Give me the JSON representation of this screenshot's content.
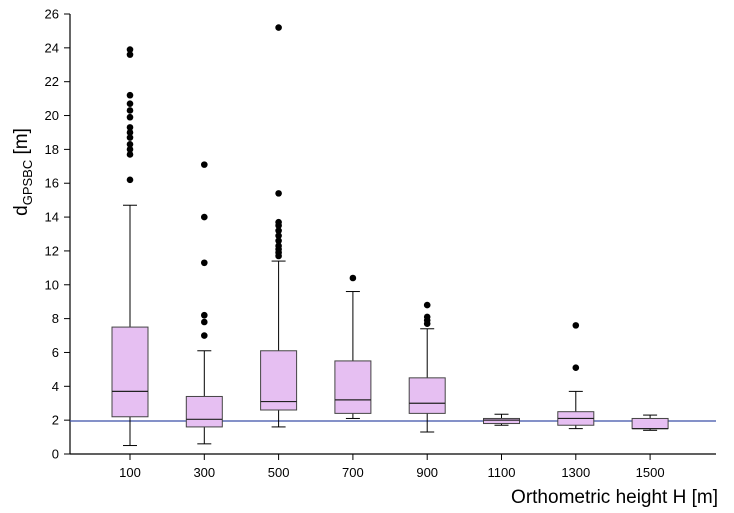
{
  "chart_data": {
    "type": "box",
    "title": "",
    "xlabel": "Orthometric height H [m]",
    "ylabel": {
      "main": "d",
      "subscript": "GPSBC",
      "unit": " [m]"
    },
    "ylim": [
      0,
      26
    ],
    "yticks": [
      0,
      2,
      4,
      6,
      8,
      10,
      12,
      14,
      16,
      18,
      20,
      22,
      24,
      26
    ],
    "categories": [
      "100",
      "300",
      "500",
      "700",
      "900",
      "1100",
      "1300",
      "1500"
    ],
    "boxes": [
      {
        "category": "100",
        "whisker_low": 0.5,
        "q1": 2.2,
        "median": 3.7,
        "q3": 7.5,
        "whisker_high": 14.7,
        "outliers": [
          16.2,
          17.7,
          18.0,
          18.3,
          18.7,
          19.0,
          19.3,
          19.9,
          20.3,
          20.7,
          21.2,
          23.6,
          23.9
        ]
      },
      {
        "category": "300",
        "whisker_low": 0.6,
        "q1": 1.6,
        "median": 2.05,
        "q3": 3.4,
        "whisker_high": 6.1,
        "outliers": [
          7.0,
          7.8,
          8.2,
          11.3,
          14.0,
          17.1
        ]
      },
      {
        "category": "500",
        "whisker_low": 1.6,
        "q1": 2.6,
        "median": 3.1,
        "q3": 6.1,
        "whisker_high": 11.4,
        "outliers": [
          11.7,
          11.9,
          12.1,
          12.3,
          12.6,
          12.9,
          13.2,
          13.5,
          13.7,
          15.4,
          25.2
        ]
      },
      {
        "category": "700",
        "whisker_low": 2.1,
        "q1": 2.4,
        "median": 3.2,
        "q3": 5.5,
        "whisker_high": 9.6,
        "outliers": [
          10.4
        ]
      },
      {
        "category": "900",
        "whisker_low": 1.3,
        "q1": 2.4,
        "median": 3.0,
        "q3": 4.5,
        "whisker_high": 7.4,
        "outliers": [
          7.7,
          7.9,
          8.1,
          8.8
        ]
      },
      {
        "category": "1100",
        "whisker_low": 1.7,
        "q1": 1.8,
        "median": 2.0,
        "q3": 2.1,
        "whisker_high": 2.35,
        "outliers": []
      },
      {
        "category": "1300",
        "whisker_low": 1.5,
        "q1": 1.7,
        "median": 2.1,
        "q3": 2.5,
        "whisker_high": 3.7,
        "outliers": [
          5.1,
          7.6
        ]
      },
      {
        "category": "1500",
        "whisker_low": 1.4,
        "q1": 1.5,
        "median": 1.5,
        "q3": 2.1,
        "whisker_high": 2.3,
        "outliers": []
      }
    ],
    "reference_line": {
      "y": 1.95,
      "color": "#3b4fa8"
    },
    "colors": {
      "box_fill": "#e6bff2",
      "box_stroke": "#444444",
      "outlier": "#000000",
      "axis": "#000000"
    },
    "grid": false,
    "legend": "none"
  }
}
